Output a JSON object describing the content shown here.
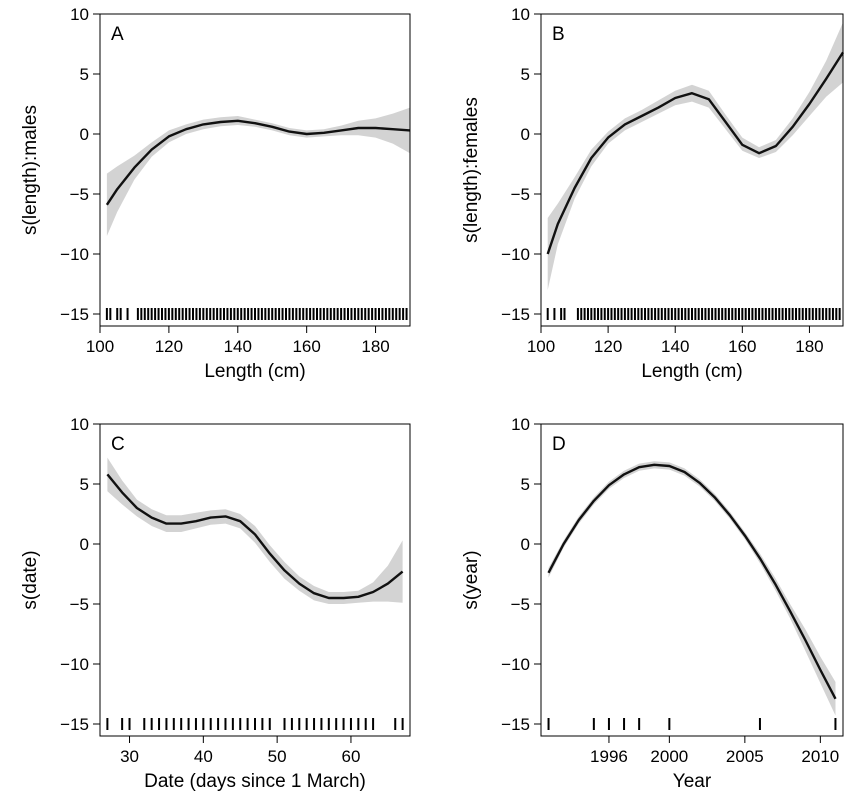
{
  "chart_data": [
    {
      "type": "line",
      "panel_label": "A",
      "xlabel": "Length (cm)",
      "ylabel": "s(length):males",
      "xlim": [
        100,
        190
      ],
      "ylim": [
        -16,
        10
      ],
      "xticks": [
        100,
        120,
        140,
        160,
        180
      ],
      "yticks": [
        10,
        5,
        0,
        -5,
        -10,
        -15
      ],
      "grid": false,
      "x": [
        102,
        105,
        110,
        115,
        120,
        125,
        130,
        135,
        140,
        145,
        150,
        155,
        160,
        165,
        170,
        175,
        180,
        185,
        190
      ],
      "y": [
        -5.9,
        -4.6,
        -2.8,
        -1.3,
        -0.2,
        0.4,
        0.8,
        1.0,
        1.1,
        0.9,
        0.6,
        0.2,
        0.0,
        0.1,
        0.3,
        0.5,
        0.5,
        0.4,
        0.3
      ],
      "lower": [
        -8.5,
        -6.5,
        -3.8,
        -1.9,
        -0.7,
        0.0,
        0.4,
        0.65,
        0.75,
        0.6,
        0.3,
        -0.1,
        -0.3,
        -0.2,
        -0.1,
        -0.1,
        -0.3,
        -0.8,
        -1.6
      ],
      "upper": [
        -3.3,
        -2.7,
        -1.8,
        -0.7,
        0.3,
        0.8,
        1.2,
        1.4,
        1.5,
        1.2,
        0.9,
        0.5,
        0.3,
        0.4,
        0.7,
        1.1,
        1.3,
        1.7,
        2.2
      ],
      "rug": [
        102,
        103,
        105,
        106,
        108,
        111,
        112,
        113,
        114,
        115,
        116,
        117,
        118,
        119,
        120,
        121,
        122,
        123,
        124,
        125,
        126,
        127,
        128,
        129,
        130,
        131,
        132,
        133,
        134,
        135,
        136,
        137,
        138,
        139,
        140,
        141,
        142,
        143,
        144,
        145,
        146,
        147,
        148,
        149,
        150,
        151,
        152,
        153,
        154,
        155,
        156,
        157,
        158,
        159,
        160,
        161,
        162,
        163,
        164,
        165,
        166,
        167,
        168,
        169,
        170,
        171,
        172,
        173,
        174,
        175,
        176,
        177,
        178,
        179,
        180,
        181,
        182,
        183,
        184,
        185,
        186,
        187,
        188,
        189
      ]
    },
    {
      "type": "line",
      "panel_label": "B",
      "xlabel": "Length (cm)",
      "ylabel": "s(length):females",
      "xlim": [
        100,
        190
      ],
      "ylim": [
        -16,
        10
      ],
      "xticks": [
        100,
        120,
        140,
        160,
        180
      ],
      "yticks": [
        10,
        5,
        0,
        -5,
        -10,
        -15
      ],
      "grid": false,
      "x": [
        102,
        105,
        110,
        115,
        120,
        125,
        130,
        135,
        140,
        145,
        150,
        155,
        160,
        165,
        170,
        175,
        180,
        185,
        190
      ],
      "y": [
        -10.0,
        -7.5,
        -4.5,
        -2.0,
        -0.3,
        0.8,
        1.5,
        2.2,
        3.0,
        3.4,
        2.9,
        1.0,
        -0.9,
        -1.6,
        -1.0,
        0.6,
        2.5,
        4.6,
        6.8
      ],
      "lower": [
        -13.0,
        -9.2,
        -5.4,
        -2.7,
        -0.8,
        0.3,
        1.0,
        1.7,
        2.4,
        2.7,
        2.2,
        0.4,
        -1.4,
        -2.0,
        -1.5,
        -0.1,
        1.5,
        3.1,
        4.3
      ],
      "upper": [
        -7.0,
        -5.8,
        -3.6,
        -1.3,
        0.2,
        1.3,
        2.0,
        2.8,
        3.6,
        4.1,
        3.6,
        1.6,
        -0.3,
        -1.1,
        -0.5,
        1.3,
        3.5,
        6.1,
        9.3
      ],
      "rug": [
        102,
        104,
        106,
        107,
        111,
        112,
        113,
        114,
        115,
        116,
        117,
        118,
        119,
        120,
        121,
        122,
        123,
        124,
        125,
        126,
        127,
        128,
        129,
        130,
        131,
        132,
        133,
        134,
        135,
        136,
        137,
        138,
        139,
        140,
        141,
        142,
        143,
        144,
        145,
        146,
        147,
        148,
        149,
        150,
        151,
        152,
        153,
        154,
        155,
        156,
        157,
        158,
        159,
        160,
        161,
        162,
        163,
        164,
        165,
        166,
        167,
        168,
        169,
        170,
        171,
        172,
        173,
        174,
        175,
        176,
        177,
        178,
        179,
        180,
        181,
        182,
        183,
        184,
        185,
        186,
        187,
        188,
        189
      ]
    },
    {
      "type": "line",
      "panel_label": "C",
      "xlabel": "Date (days since 1 March)",
      "ylabel": "s(date)",
      "xlim": [
        26,
        68
      ],
      "ylim": [
        -16,
        10
      ],
      "xticks": [
        30,
        40,
        50,
        60
      ],
      "yticks": [
        10,
        5,
        0,
        -5,
        -10,
        -15
      ],
      "grid": false,
      "x": [
        27,
        29,
        31,
        33,
        35,
        37,
        39,
        41,
        43,
        45,
        47,
        49,
        51,
        53,
        55,
        57,
        59,
        61,
        63,
        65,
        67
      ],
      "y": [
        5.8,
        4.3,
        3.0,
        2.2,
        1.7,
        1.7,
        1.9,
        2.2,
        2.3,
        1.9,
        0.8,
        -0.8,
        -2.2,
        -3.3,
        -4.1,
        -4.5,
        -4.5,
        -4.4,
        -4.0,
        -3.3,
        -2.3
      ],
      "lower": [
        4.4,
        3.3,
        2.3,
        1.5,
        1.0,
        1.0,
        1.3,
        1.6,
        1.7,
        1.3,
        0.1,
        -1.5,
        -2.9,
        -3.9,
        -4.7,
        -5.0,
        -5.0,
        -4.9,
        -4.8,
        -4.8,
        -4.9
      ],
      "upper": [
        7.2,
        5.3,
        3.7,
        2.9,
        2.4,
        2.4,
        2.6,
        2.8,
        2.9,
        2.5,
        1.5,
        -0.1,
        -1.5,
        -2.7,
        -3.5,
        -4.0,
        -4.0,
        -3.9,
        -3.2,
        -1.8,
        0.3
      ],
      "rug": [
        27,
        29,
        30,
        32,
        33,
        34,
        35,
        36,
        37,
        38,
        39,
        40,
        41,
        42,
        43,
        44,
        45,
        46,
        47,
        48,
        49,
        51,
        52,
        53,
        54,
        55,
        56,
        57,
        58,
        59,
        60,
        61,
        62,
        63,
        66,
        67
      ]
    },
    {
      "type": "line",
      "panel_label": "D",
      "xlabel": "Year",
      "ylabel": "s(year)",
      "xlim": [
        1991.5,
        2011.5
      ],
      "ylim": [
        -16,
        10
      ],
      "xticks": [
        1996,
        2000,
        2005,
        2010
      ],
      "yticks": [
        10,
        5,
        0,
        -5,
        -10,
        -15
      ],
      "grid": false,
      "x": [
        1992,
        1993,
        1994,
        1995,
        1996,
        1997,
        1998,
        1999,
        2000,
        2001,
        2002,
        2003,
        2004,
        2005,
        2006,
        2007,
        2008,
        2009,
        2010,
        2011
      ],
      "y": [
        -2.4,
        0.0,
        2.0,
        3.6,
        4.9,
        5.8,
        6.4,
        6.6,
        6.5,
        6.0,
        5.1,
        3.9,
        2.4,
        0.7,
        -1.2,
        -3.3,
        -5.6,
        -8.0,
        -10.5,
        -12.9
      ],
      "lower": [
        -2.8,
        -0.3,
        1.7,
        3.3,
        4.6,
        5.5,
        6.1,
        6.3,
        6.2,
        5.7,
        4.8,
        3.6,
        2.1,
        0.4,
        -1.6,
        -3.8,
        -6.2,
        -8.9,
        -11.6,
        -14.3
      ],
      "upper": [
        -2.0,
        0.3,
        2.3,
        3.9,
        5.2,
        6.1,
        6.7,
        6.9,
        6.8,
        6.3,
        5.4,
        4.2,
        2.7,
        1.0,
        -0.8,
        -2.8,
        -5.0,
        -7.1,
        -9.4,
        -11.5
      ],
      "rug": [
        1992,
        1995,
        1996,
        1997,
        1998,
        2000,
        2006,
        2011
      ]
    }
  ]
}
